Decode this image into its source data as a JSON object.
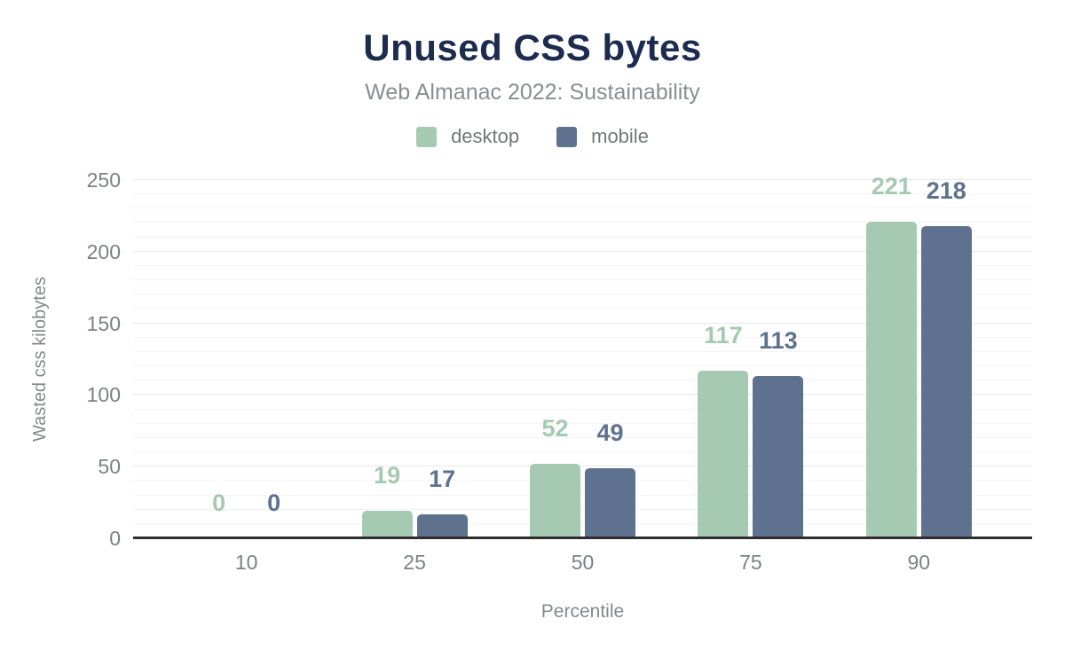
{
  "header": {
    "title": "Unused CSS bytes",
    "subtitle": "Web Almanac 2022: Sustainability"
  },
  "legend": [
    {
      "label": "desktop",
      "color": "#a6c9b4"
    },
    {
      "label": "mobile",
      "color": "#5e7290"
    }
  ],
  "chart_data": {
    "type": "bar",
    "title": "Unused CSS bytes",
    "subtitle": "Web Almanac 2022: Sustainability",
    "categories": [
      "10",
      "25",
      "50",
      "75",
      "90"
    ],
    "series": [
      {
        "name": "desktop",
        "color": "#a6c9b4",
        "values": [
          0,
          19,
          52,
          117,
          221
        ]
      },
      {
        "name": "mobile",
        "color": "#5e7290",
        "values": [
          0,
          17,
          49,
          113,
          218
        ]
      }
    ],
    "xlabel": "Percentile",
    "ylabel": "Wasted css kilobytes",
    "ylim": [
      0,
      250
    ],
    "y_major_step": 50,
    "y_minor_step": 10,
    "grid": true,
    "legend_position": "top",
    "value_labels": true
  },
  "colors": {
    "title": "#1c2b4e",
    "subtitle": "#8a8d90",
    "tick_label": "#7d8083",
    "axis_line": "#2e2e2e",
    "grid_major": "#e8e8e8",
    "grid_minor": "#f4f4f4",
    "background": "#ffffff"
  }
}
